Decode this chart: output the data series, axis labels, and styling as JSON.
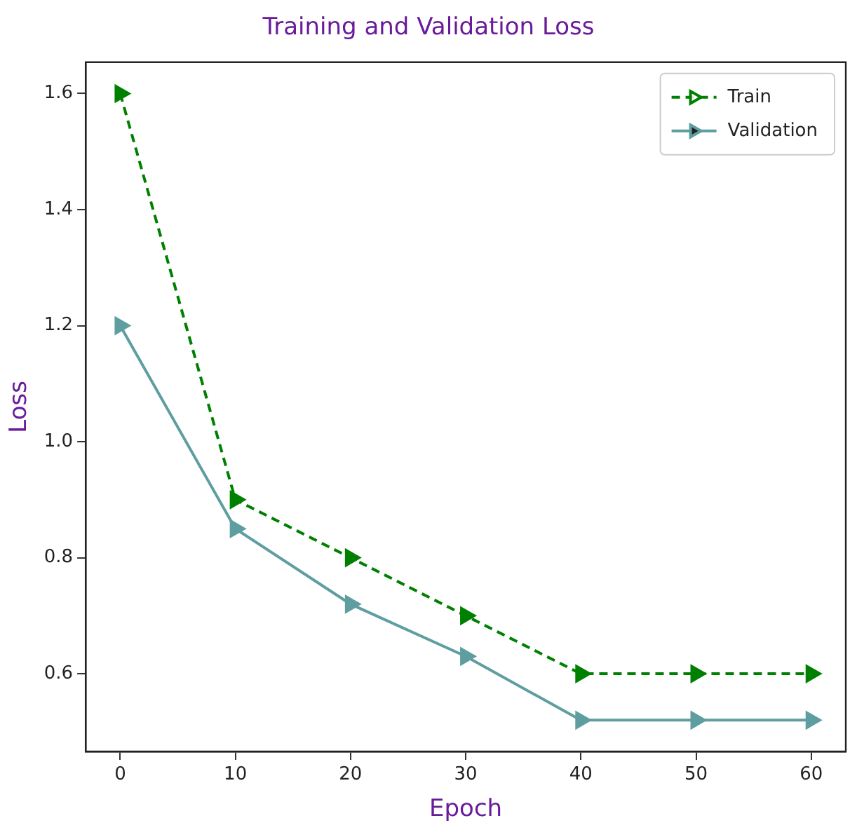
{
  "chart_data": {
    "type": "line",
    "title": "Training and Validation Loss",
    "xlabel": "Epoch",
    "ylabel": "Loss",
    "x": [
      0,
      10,
      20,
      30,
      40,
      50,
      60
    ],
    "series": [
      {
        "name": "Train",
        "color": "#008000",
        "line_style": "dashed",
        "values": [
          1.6,
          0.9,
          0.8,
          0.7,
          0.6,
          0.6,
          0.6
        ]
      },
      {
        "name": "Validation",
        "color": "#5f9ea0",
        "line_style": "solid",
        "values": [
          1.2,
          0.85,
          0.72,
          0.63,
          0.52,
          0.52,
          0.52
        ]
      }
    ],
    "xlim": [
      -3,
      63
    ],
    "xticks": [
      0,
      10,
      20,
      30,
      40,
      50,
      60
    ],
    "ylim": [
      0.466,
      1.654
    ],
    "yticks": [
      0.6,
      0.8,
      {
        "value": 1,
        "label": "1.0"
      },
      1.2,
      1.4,
      1.6
    ],
    "grid": false,
    "legend": "top right",
    "marker": "triangle"
  }
}
